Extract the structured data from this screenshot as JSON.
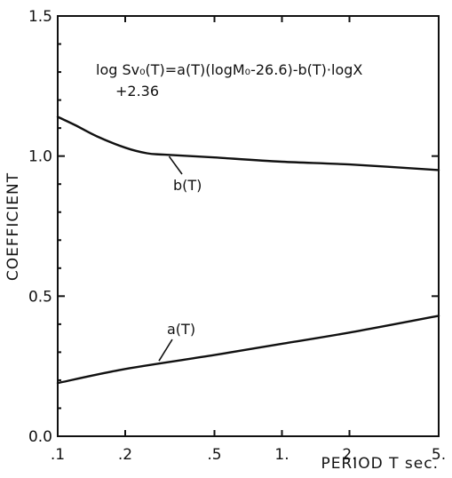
{
  "chart_data": {
    "type": "line",
    "x_scale": "log",
    "xlabel": "PERIOD  T  sec.",
    "ylabel": "COEFFICIENT",
    "xlim": [
      0.1,
      5
    ],
    "ylim": [
      0.0,
      1.5
    ],
    "grid": false,
    "x_ticks": [
      {
        "value": 0.1,
        "label": ".1"
      },
      {
        "value": 0.2,
        "label": ".2"
      },
      {
        "value": 0.5,
        "label": ".5"
      },
      {
        "value": 1,
        "label": "1."
      },
      {
        "value": 2,
        "label": "2."
      },
      {
        "value": 5,
        "label": "5."
      }
    ],
    "y_ticks": [
      {
        "value": 0.0,
        "label": "0.0"
      },
      {
        "value": 0.5,
        "label": "0.5"
      },
      {
        "value": 1.0,
        "label": "1.0"
      },
      {
        "value": 1.5,
        "label": "1.5"
      }
    ],
    "series": [
      {
        "name": "b(T)",
        "x": [
          0.1,
          0.12,
          0.15,
          0.2,
          0.25,
          0.3,
          0.5,
          1,
          2,
          5
        ],
        "y": [
          1.14,
          1.11,
          1.07,
          1.03,
          1.01,
          1.005,
          0.995,
          0.98,
          0.97,
          0.95
        ]
      },
      {
        "name": "a(T)",
        "x": [
          0.1,
          0.2,
          0.5,
          1,
          2,
          5
        ],
        "y": [
          0.19,
          0.24,
          0.29,
          0.33,
          0.37,
          0.43
        ]
      }
    ],
    "annotations": {
      "equation_line1": "log Sv₀(T)=a(T)(logM₀-26.6)-b(T)·logX",
      "equation_line2": "+2.36"
    }
  }
}
